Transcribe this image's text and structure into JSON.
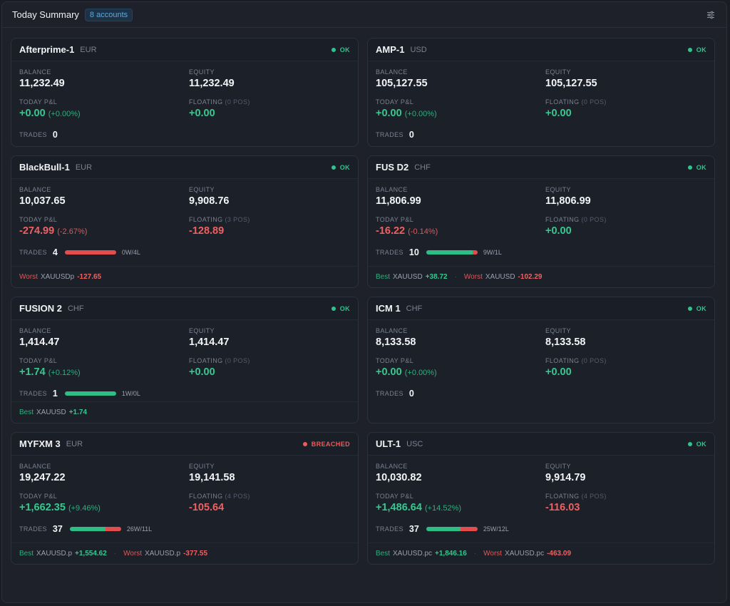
{
  "header": {
    "title": "Today Summary",
    "badge": "8 accounts",
    "settings_icon": "sliders-icon"
  },
  "labels": {
    "balance": "BALANCE",
    "equity": "EQUITY",
    "today_pnl": "TODAY P&L",
    "floating": "FLOATING",
    "trades": "TRADES",
    "best": "Best",
    "worst": "Worst"
  },
  "colors": {
    "positive": "#34c98f",
    "negative": "#ef6161",
    "ok": "#2fc48d",
    "breached": "#ef5b5b",
    "accent": "#5aa9e6"
  },
  "accounts": [
    {
      "name": "Afterprime-1",
      "currency": "EUR",
      "status": "OK",
      "status_type": "ok",
      "balance": "11,232.49",
      "equity": "11,232.49",
      "pnl": "+0.00",
      "pnl_pct": "(+0.00%)",
      "pnl_sign": "pos",
      "floating_pos": "(0 POS)",
      "floating": "+0.00",
      "floating_sign": "pos",
      "trades": "0",
      "wins": 0,
      "losses": 0,
      "wl": "",
      "best": null,
      "worst": null
    },
    {
      "name": "AMP-1",
      "currency": "USD",
      "status": "OK",
      "status_type": "ok",
      "balance": "105,127.55",
      "equity": "105,127.55",
      "pnl": "+0.00",
      "pnl_pct": "(+0.00%)",
      "pnl_sign": "pos",
      "floating_pos": "(0 POS)",
      "floating": "+0.00",
      "floating_sign": "pos",
      "trades": "0",
      "wins": 0,
      "losses": 0,
      "wl": "",
      "best": null,
      "worst": null
    },
    {
      "name": "BlackBull-1",
      "currency": "EUR",
      "status": "OK",
      "status_type": "ok",
      "balance": "10,037.65",
      "equity": "9,908.76",
      "pnl": "-274.99",
      "pnl_pct": "(-2.67%)",
      "pnl_sign": "neg",
      "floating_pos": "(3 POS)",
      "floating": "-128.89",
      "floating_sign": "neg",
      "trades": "4",
      "wins": 0,
      "losses": 4,
      "wl": "0W/4L",
      "best": null,
      "worst": {
        "symbol": "XAUUSDp",
        "value": "-127.65"
      }
    },
    {
      "name": "FUS D2",
      "currency": "CHF",
      "status": "OK",
      "status_type": "ok",
      "balance": "11,806.99",
      "equity": "11,806.99",
      "pnl": "-16.22",
      "pnl_pct": "(-0.14%)",
      "pnl_sign": "neg",
      "floating_pos": "(0 POS)",
      "floating": "+0.00",
      "floating_sign": "pos",
      "trades": "10",
      "wins": 9,
      "losses": 1,
      "wl": "9W/1L",
      "best": {
        "symbol": "XAUUSD",
        "value": "+38.72"
      },
      "worst": {
        "symbol": "XAUUSD",
        "value": "-102.29"
      }
    },
    {
      "name": "FUSION 2",
      "currency": "CHF",
      "status": "OK",
      "status_type": "ok",
      "balance": "1,414.47",
      "equity": "1,414.47",
      "pnl": "+1.74",
      "pnl_pct": "(+0.12%)",
      "pnl_sign": "pos",
      "floating_pos": "(0 POS)",
      "floating": "+0.00",
      "floating_sign": "pos",
      "trades": "1",
      "wins": 1,
      "losses": 0,
      "wl": "1W/0L",
      "best": {
        "symbol": "XAUUSD",
        "value": "+1.74"
      },
      "worst": null
    },
    {
      "name": "ICM 1",
      "currency": "CHF",
      "status": "OK",
      "status_type": "ok",
      "balance": "8,133.58",
      "equity": "8,133.58",
      "pnl": "+0.00",
      "pnl_pct": "(+0.00%)",
      "pnl_sign": "pos",
      "floating_pos": "(0 POS)",
      "floating": "+0.00",
      "floating_sign": "pos",
      "trades": "0",
      "wins": 0,
      "losses": 0,
      "wl": "",
      "best": null,
      "worst": null
    },
    {
      "name": "MYFXM 3",
      "currency": "EUR",
      "status": "BREACHED",
      "status_type": "breached",
      "balance": "19,247.22",
      "equity": "19,141.58",
      "pnl": "+1,662.35",
      "pnl_pct": "(+9.46%)",
      "pnl_sign": "pos",
      "floating_pos": "(4 POS)",
      "floating": "-105.64",
      "floating_sign": "neg",
      "trades": "37",
      "wins": 26,
      "losses": 11,
      "wl": "26W/11L",
      "best": {
        "symbol": "XAUUSD.p",
        "value": "+1,554.62"
      },
      "worst": {
        "symbol": "XAUUSD.p",
        "value": "-377.55"
      }
    },
    {
      "name": "ULT-1",
      "currency": "USC",
      "status": "OK",
      "status_type": "ok",
      "balance": "10,030.82",
      "equity": "9,914.79",
      "pnl": "+1,486.64",
      "pnl_pct": "(+14.52%)",
      "pnl_sign": "pos",
      "floating_pos": "(4 POS)",
      "floating": "-116.03",
      "floating_sign": "neg",
      "trades": "37",
      "wins": 25,
      "losses": 12,
      "wl": "25W/12L",
      "best": {
        "symbol": "XAUUSD.pc",
        "value": "+1,846.16"
      },
      "worst": {
        "symbol": "XAUUSD.pc",
        "value": "-463.09"
      }
    }
  ]
}
